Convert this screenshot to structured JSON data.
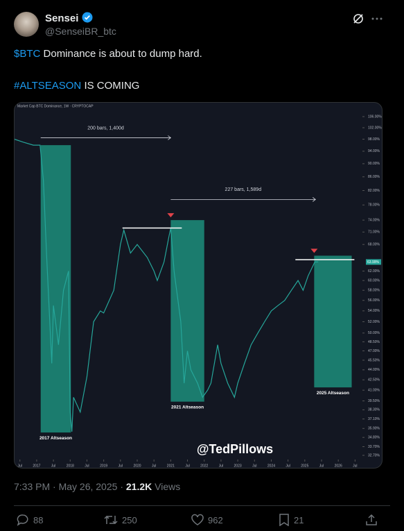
{
  "tweet": {
    "author_name": "Sensei",
    "handle": "@SenseiBR_btc",
    "cashtag": "$BTC",
    "line1": "Dominance is about to dump hard.",
    "hashtag": "#ALTSEASON",
    "line2": "IS COMING",
    "time": "7:33 PM · May 26, 2025",
    "separator": "·",
    "views": "21.2K",
    "views_label": "Views",
    "replies": "88",
    "reposts": "250",
    "likes": "962",
    "bookmarks": "21"
  },
  "chart_data": {
    "type": "line",
    "header": "Market Cap BTC Dominance, 1W · CRYPTOCAP",
    "color": "#26a69a",
    "log_scale": true,
    "x": [
      2016.34,
      2016.6,
      2016.9,
      2017.1,
      2017.2,
      2017.3,
      2017.45,
      2017.5,
      2017.65,
      2017.8,
      2017.95,
      2018.0,
      2018.05,
      2018.1,
      2018.3,
      2018.5,
      2018.7,
      2018.9,
      2019.0,
      2019.3,
      2019.5,
      2019.6,
      2019.8,
      2020.0,
      2020.3,
      2020.5,
      2020.6,
      2020.8,
      2020.95,
      2021.0,
      2021.1,
      2021.3,
      2021.4,
      2021.5,
      2021.6,
      2021.8,
      2021.95,
      2022.1,
      2022.2,
      2022.4,
      2022.5,
      2022.7,
      2022.9,
      2023.0,
      2023.2,
      2023.4,
      2023.6,
      2023.8,
      2024.0,
      2024.2,
      2024.4,
      2024.6,
      2024.8,
      2024.95,
      2025.1,
      2025.3,
      2025.4
    ],
    "series": [
      {
        "name": "BTC Dominance",
        "values": [
          98,
          97,
          96,
          96,
          85,
          65,
          45,
          55,
          48,
          58,
          62,
          38,
          35.5,
          40,
          38,
          43,
          52,
          54,
          53.6,
          58,
          68,
          71.5,
          66,
          68,
          65,
          62,
          60,
          64,
          70,
          72,
          62,
          52,
          42,
          47,
          44,
          42,
          40,
          41,
          42,
          48,
          45,
          42,
          40,
          42,
          45,
          48,
          50,
          52,
          54,
          55,
          56,
          58,
          60,
          58,
          61,
          64,
          64
        ]
      }
    ],
    "last_value": {
      "value": 63.99,
      "label": "63.99%"
    },
    "xlim": [
      2016.34,
      2026.72
    ],
    "xticks": [
      {
        "value": 2016.5,
        "label": "Jul"
      },
      2017,
      {
        "value": 2017.5,
        "label": "Jul"
      },
      2018,
      {
        "value": 2018.5,
        "label": "Jul"
      },
      2019,
      {
        "value": 2019.5,
        "label": "Jul"
      },
      2020,
      {
        "value": 2020.5,
        "label": "Jul"
      },
      2021,
      {
        "value": 2021.5,
        "label": "Jul"
      },
      2022,
      {
        "value": 2022.5,
        "label": "Jul"
      },
      2023,
      {
        "value": 2023.5,
        "label": "Jul"
      },
      2024,
      {
        "value": 2024.5,
        "label": "Jul"
      },
      2025,
      {
        "value": 2025.5,
        "label": "Jul"
      },
      2026,
      {
        "value": 2026.5,
        "label": "Jul"
      }
    ],
    "ylim": [
      32.7,
      106
    ],
    "yticks": [
      {
        "value": 106,
        "label": "106.00%"
      },
      {
        "value": 102,
        "label": "102.00%"
      },
      {
        "value": 98,
        "label": "98.00%"
      },
      {
        "value": 94,
        "label": "94.00%"
      },
      {
        "value": 90,
        "label": "90.00%"
      },
      {
        "value": 86,
        "label": "86.00%"
      },
      {
        "value": 82,
        "label": "82.00%"
      },
      {
        "value": 78,
        "label": "78.00%"
      },
      {
        "value": 74,
        "label": "74.00%"
      },
      {
        "value": 71,
        "label": "71.00%"
      },
      {
        "value": 68,
        "label": "68.00%"
      },
      {
        "value": 62,
        "label": "62.00%"
      },
      {
        "value": 60,
        "label": "60.00%"
      },
      {
        "value": 58,
        "label": "58.00%"
      },
      {
        "value": 56,
        "label": "56.00%"
      },
      {
        "value": 54,
        "label": "54.00%"
      },
      {
        "value": 52,
        "label": "52.00%"
      },
      {
        "value": 50,
        "label": "50.00%"
      },
      {
        "value": 48.5,
        "label": "48.50%"
      },
      {
        "value": 47,
        "label": "47.00%"
      },
      {
        "value": 45.5,
        "label": "45.50%"
      },
      {
        "value": 44,
        "label": "44.00%"
      },
      {
        "value": 42.5,
        "label": "42.50%"
      },
      {
        "value": 41,
        "label": "41.00%"
      },
      {
        "value": 39.5,
        "label": "39.50%"
      },
      {
        "value": 38.3,
        "label": "38.30%"
      },
      {
        "value": 37.1,
        "label": "37.10%"
      },
      {
        "value": 35.9,
        "label": "35.90%"
      },
      {
        "value": 34.8,
        "label": "34.80%"
      },
      {
        "value": 33.7,
        "label": "33.70%"
      },
      {
        "value": 32.7,
        "label": "32.70%"
      }
    ],
    "zones": [
      {
        "label": "2017 Altseason",
        "x": [
          2017.12,
          2018.02
        ],
        "y": [
          35.4,
          96
        ]
      },
      {
        "label": "2021 Altseason",
        "x": [
          2021.0,
          2022.0
        ],
        "y": [
          39.4,
          74
        ]
      },
      {
        "label": "2025 Altseason",
        "x": [
          2025.28,
          2026.4
        ],
        "y": [
          41.4,
          65.4
        ]
      }
    ],
    "measures": [
      {
        "label": "200 bars, 1,400d",
        "x": [
          2017.12,
          2021.0
        ],
        "y": 98.5
      },
      {
        "label": "227 bars, 1,589d",
        "x": [
          2021.0,
          2025.32
        ],
        "y": 79.5
      }
    ],
    "levels": [
      {
        "x": [
          2019.56,
          2021.33
        ],
        "y": 72
      },
      {
        "x": [
          2024.72,
          2026.48
        ],
        "y": 64.5
      }
    ],
    "watermark": "@TedPillows"
  }
}
